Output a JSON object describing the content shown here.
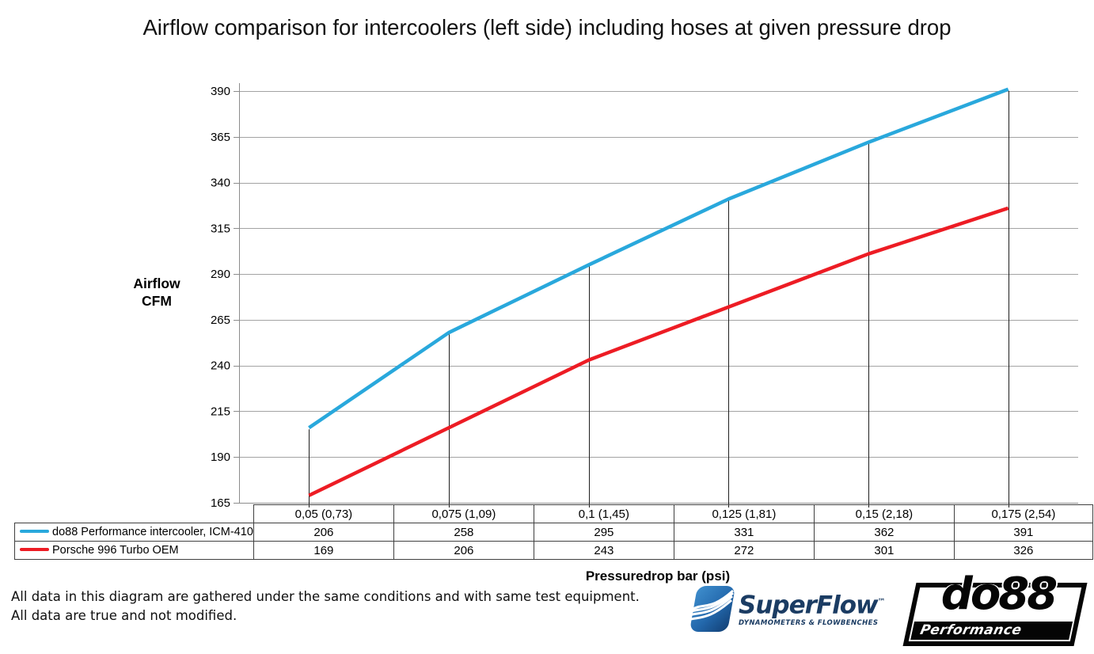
{
  "title": "Airflow comparison for intercoolers (left side) including hoses at given pressure drop",
  "chart_data": {
    "type": "line",
    "title": "Airflow comparison for intercoolers (left side) including hoses at given pressure drop",
    "categories": [
      "0,05 (0,73)",
      "0,075 (1,09)",
      "0,1 (1,45)",
      "0,125 (1,81)",
      "0,15 (2,18)",
      "0,175 (2,54)"
    ],
    "series": [
      {
        "name": "do88 Performance intercooler, ICM-410",
        "color": "#29A8DC",
        "values": [
          206,
          258,
          295,
          331,
          362,
          391
        ]
      },
      {
        "name": "Porsche 996 Turbo OEM",
        "color": "#ED1C24",
        "values": [
          169,
          206,
          243,
          272,
          301,
          326
        ]
      }
    ],
    "xlabel": "Pressuredrop bar (psi)",
    "ylabel": "Airflow CFM",
    "ylim": [
      165,
      390
    ],
    "yticks": [
      165,
      190,
      215,
      240,
      265,
      290,
      315,
      340,
      365,
      390
    ],
    "grid": true,
    "drop_lines": true,
    "legend_position": "table-left"
  },
  "axis": {
    "y_label_line1": "Airflow",
    "y_label_line2": "CFM",
    "x_title": "Pressuredrop bar (psi)"
  },
  "footer": {
    "line1": "All data in this diagram are gathered under the same conditions and with same test equipment.",
    "line2": "All data are true and not modified."
  },
  "logos": {
    "superflow": {
      "name": "SuperFlow",
      "trademark": "™",
      "tagline": "DYNAMOMETERS & FLOWBENCHES"
    },
    "do88": {
      "name": "do88",
      "tagline": "Performance"
    }
  },
  "colors": {
    "series_do88": "#29A8DC",
    "series_oem": "#ED1C24",
    "gridline": "#A3A3A3",
    "axis": "#8C8C8C",
    "drop_line": "#1F1F1F",
    "table_border": "#404040",
    "superflow_navy": "#1B3C63",
    "logo_black": "#050505"
  }
}
